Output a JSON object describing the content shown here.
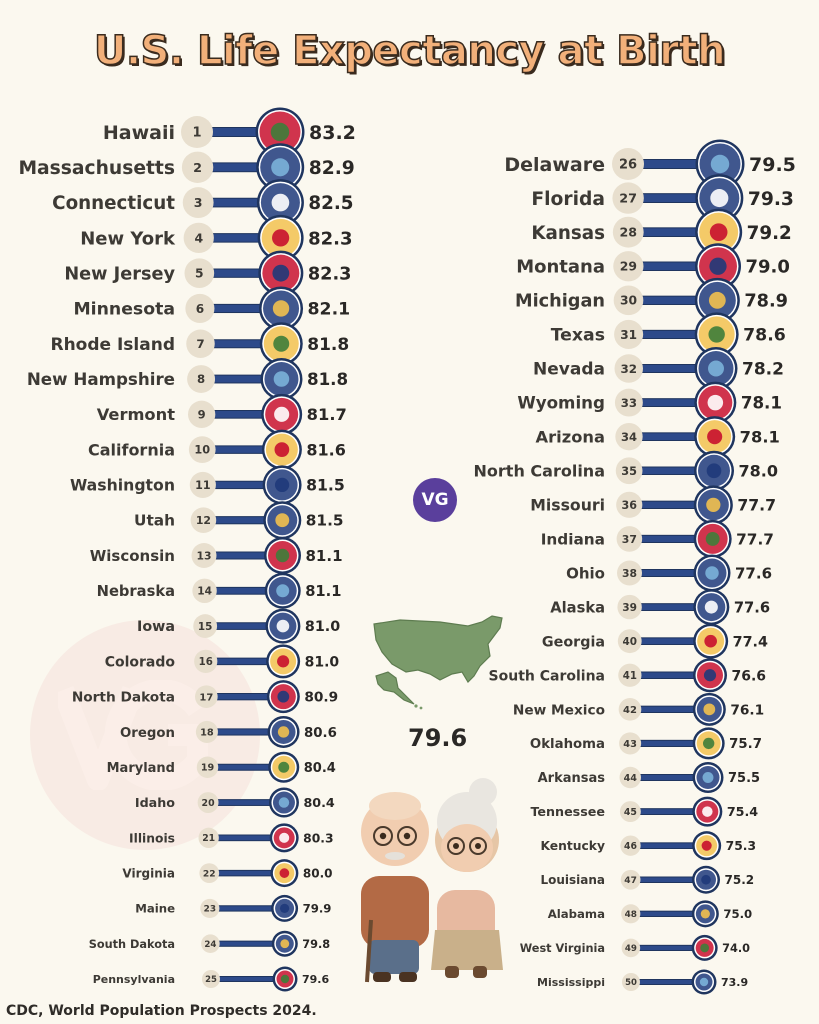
{
  "header": {
    "title": "U.S. Life Expectancy at Birth"
  },
  "brand": {
    "logo_text": "VG",
    "logo_color": "#5a3f9c",
    "watermark_text": "VG"
  },
  "national": {
    "value": "79.6"
  },
  "footer": {
    "source": "CDC, World Population Prospects 2024."
  },
  "colors": {
    "background": "#fbf8ef",
    "bar": "#2d4a8a",
    "bar_edge": "#1f355f",
    "rank_circle": "#e8dfce",
    "flag_ring": "#1f355f",
    "title_fill": "#f2b07a",
    "map_fill": "#7a9a6a"
  },
  "chart_data": {
    "type": "bar",
    "title": "U.S. Life Expectancy at Birth",
    "unit": "",
    "national_average": 79.6,
    "series": [
      {
        "name": "",
        "points": [
          {
            "rank": 1,
            "state": "Hawaii",
            "value": 83.2,
            "flag": "hawaii-flag"
          },
          {
            "rank": 2,
            "state": "Massachusetts",
            "value": 82.9,
            "flag": "massachusetts-flag"
          },
          {
            "rank": 3,
            "state": "Connecticut",
            "value": 82.5,
            "flag": "connecticut-flag"
          },
          {
            "rank": 4,
            "state": "New York",
            "value": 82.3,
            "flag": "new-york-flag"
          },
          {
            "rank": 5,
            "state": "New Jersey",
            "value": 82.3,
            "flag": "new-jersey-flag"
          },
          {
            "rank": 6,
            "state": "Minnesota",
            "value": 82.1,
            "flag": "minnesota-flag"
          },
          {
            "rank": 7,
            "state": "Rhode Island",
            "value": 81.8,
            "flag": "rhode-island-flag"
          },
          {
            "rank": 8,
            "state": "New Hampshire",
            "value": 81.8,
            "flag": "new-hampshire-flag"
          },
          {
            "rank": 9,
            "state": "Vermont",
            "value": 81.7,
            "flag": "vermont-flag"
          },
          {
            "rank": 10,
            "state": "California",
            "value": 81.6,
            "flag": "california-flag"
          },
          {
            "rank": 11,
            "state": "Washington",
            "value": 81.5,
            "flag": "washington-flag"
          },
          {
            "rank": 12,
            "state": "Utah",
            "value": 81.5,
            "flag": "utah-flag"
          },
          {
            "rank": 13,
            "state": "Wisconsin",
            "value": 81.1,
            "flag": "wisconsin-flag"
          },
          {
            "rank": 14,
            "state": "Nebraska",
            "value": 81.1,
            "flag": "nebraska-flag"
          },
          {
            "rank": 15,
            "state": "Iowa",
            "value": 81.0,
            "flag": "iowa-flag"
          },
          {
            "rank": 16,
            "state": "Colorado",
            "value": 81.0,
            "flag": "colorado-flag"
          },
          {
            "rank": 17,
            "state": "North Dakota",
            "value": 80.9,
            "flag": "north-dakota-flag"
          },
          {
            "rank": 18,
            "state": "Oregon",
            "value": 80.6,
            "flag": "oregon-flag"
          },
          {
            "rank": 19,
            "state": "Maryland",
            "value": 80.4,
            "flag": "maryland-flag"
          },
          {
            "rank": 20,
            "state": "Idaho",
            "value": 80.4,
            "flag": "idaho-flag"
          },
          {
            "rank": 21,
            "state": "Illinois",
            "value": 80.3,
            "flag": "illinois-flag"
          },
          {
            "rank": 22,
            "state": "Virginia",
            "value": 80.0,
            "flag": "virginia-flag"
          },
          {
            "rank": 23,
            "state": "Maine",
            "value": 79.9,
            "flag": "maine-flag"
          },
          {
            "rank": 24,
            "state": "South Dakota",
            "value": 79.8,
            "flag": "south-dakota-flag"
          },
          {
            "rank": 25,
            "state": "Pennsylvania",
            "value": 79.6,
            "flag": "pennsylvania-flag"
          },
          {
            "rank": 26,
            "state": "Delaware",
            "value": 79.5,
            "flag": "delaware-flag"
          },
          {
            "rank": 27,
            "state": "Florida",
            "value": 79.3,
            "flag": "florida-flag"
          },
          {
            "rank": 28,
            "state": "Kansas",
            "value": 79.2,
            "flag": "kansas-flag"
          },
          {
            "rank": 29,
            "state": "Montana",
            "value": 79.0,
            "flag": "montana-flag"
          },
          {
            "rank": 30,
            "state": "Michigan",
            "value": 78.9,
            "flag": "michigan-flag"
          },
          {
            "rank": 31,
            "state": "Texas",
            "value": 78.6,
            "flag": "texas-flag"
          },
          {
            "rank": 32,
            "state": "Nevada",
            "value": 78.2,
            "flag": "nevada-flag"
          },
          {
            "rank": 33,
            "state": "Wyoming",
            "value": 78.1,
            "flag": "wyoming-flag"
          },
          {
            "rank": 34,
            "state": "Arizona",
            "value": 78.1,
            "flag": "arizona-flag"
          },
          {
            "rank": 35,
            "state": "North Carolina",
            "value": 78.0,
            "flag": "north-carolina-flag"
          },
          {
            "rank": 36,
            "state": "Missouri",
            "value": 77.7,
            "flag": "missouri-flag"
          },
          {
            "rank": 37,
            "state": "Indiana",
            "value": 77.7,
            "flag": "indiana-flag"
          },
          {
            "rank": 38,
            "state": "Ohio",
            "value": 77.6,
            "flag": "ohio-flag"
          },
          {
            "rank": 39,
            "state": "Alaska",
            "value": 77.6,
            "flag": "alaska-flag"
          },
          {
            "rank": 40,
            "state": "Georgia",
            "value": 77.4,
            "flag": "georgia-flag"
          },
          {
            "rank": 41,
            "state": "South Carolina",
            "value": 76.6,
            "flag": "south-carolina-flag"
          },
          {
            "rank": 42,
            "state": "New Mexico",
            "value": 76.1,
            "flag": "new-mexico-flag"
          },
          {
            "rank": 43,
            "state": "Oklahoma",
            "value": 75.7,
            "flag": "oklahoma-flag"
          },
          {
            "rank": 44,
            "state": "Arkansas",
            "value": 75.5,
            "flag": "arkansas-flag"
          },
          {
            "rank": 45,
            "state": "Tennessee",
            "value": 75.4,
            "flag": "tennessee-flag"
          },
          {
            "rank": 46,
            "state": "Kentucky",
            "value": 75.3,
            "flag": "kentucky-flag"
          },
          {
            "rank": 47,
            "state": "Louisiana",
            "value": 75.2,
            "flag": "louisiana-flag"
          },
          {
            "rank": 48,
            "state": "Alabama",
            "value": 75.0,
            "flag": "alabama-flag"
          },
          {
            "rank": 49,
            "state": "West Virginia",
            "value": 74.0,
            "flag": "west-virginia-flag"
          },
          {
            "rank": 50,
            "state": "Mississippi",
            "value": 73.9,
            "flag": "mississippi-flag"
          }
        ]
      }
    ]
  }
}
